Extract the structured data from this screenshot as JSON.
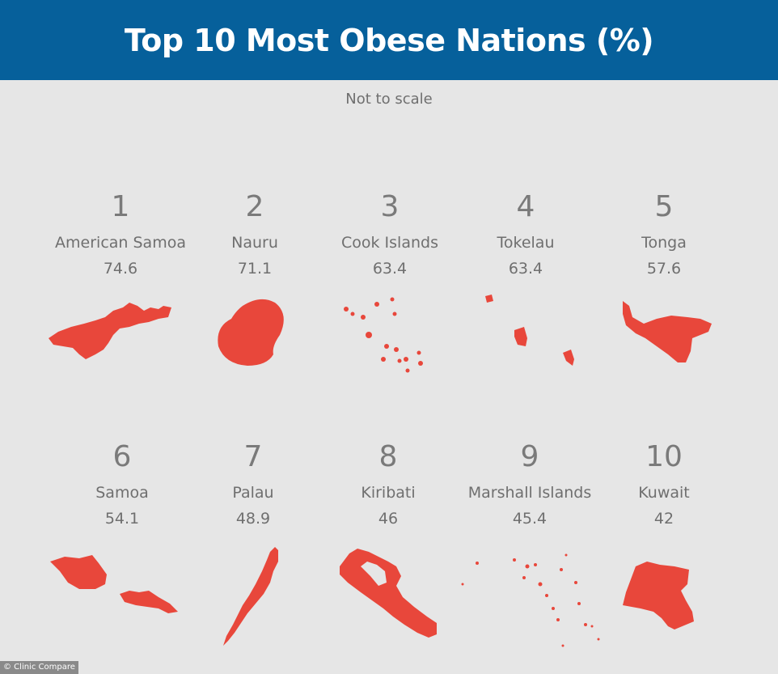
{
  "title": "Top 10 Most Obese Nations (%)",
  "subtitle": "Not to scale",
  "credit": "© Clinic Compare",
  "colors": {
    "header": "#06609b",
    "shape": "#e8473b",
    "background": "#e6e6e6",
    "text": "#6f6f6f"
  },
  "chart_data": {
    "type": "table",
    "title": "Top 10 Most Obese Nations (%)",
    "categories": [
      "American Samoa",
      "Nauru",
      "Cook Islands",
      "Tokelau",
      "Tonga",
      "Samoa",
      "Palau",
      "Kiribati",
      "Marshall Islands",
      "Kuwait"
    ],
    "ranks": [
      "1",
      "2",
      "3",
      "4",
      "5",
      "6",
      "7",
      "8",
      "9",
      "10"
    ],
    "values": [
      "74.6",
      "71.1",
      "63.4",
      "63.4",
      "57.6",
      "54.1",
      "48.9",
      "46",
      "45.4",
      "42"
    ]
  }
}
